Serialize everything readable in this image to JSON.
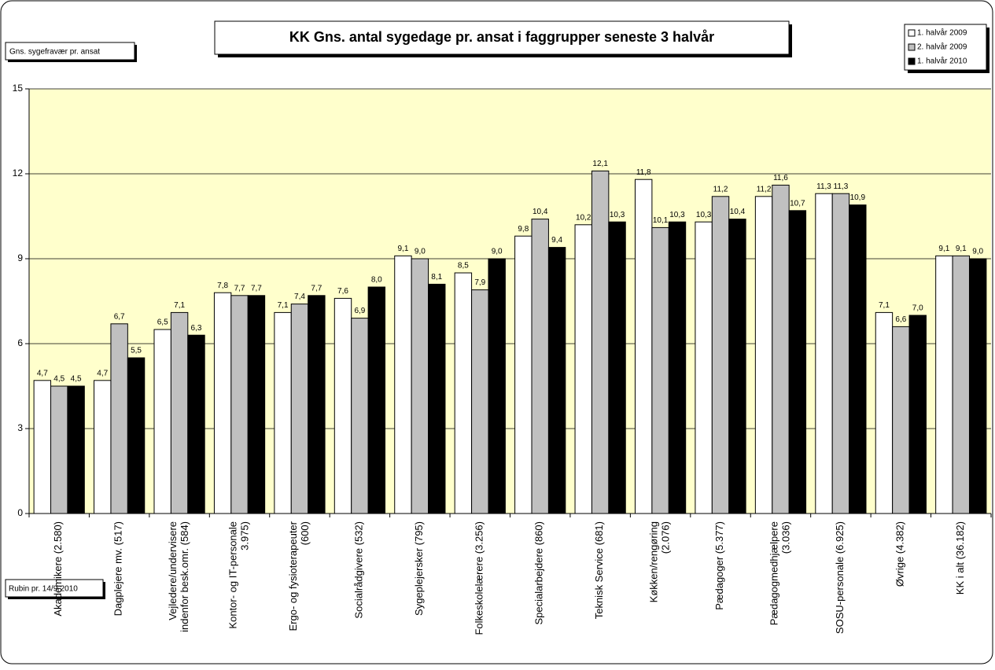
{
  "chart_data": {
    "type": "bar",
    "title": "KK Gns. antal sygedage pr. ansat i faggrupper seneste 3 halvår",
    "y_label": "Gns. sygefravær pr. ansat",
    "footnote": "Rubin pr. 14/9-2010",
    "categories": [
      "Akademikere (2.580)",
      "Dagplejere mv. (517)",
      "Vejledere/undervisere\nindenfor besk.omr. (584)",
      "Kontor- og IT-personale\n3.975)",
      "Ergo- og fysioterapeuter\n(600)",
      "Socialrådgivere (532)",
      "Sygeplejersker (795)",
      "Folkeskolelærere (3.256)",
      "Specialarbejdere (860)",
      "Teknisk Service (681)",
      "Køkken/rengøring\n(2.076)",
      "Pædagoger (5.377)",
      "Pædagogmedhjælpere\n(3.036)",
      "SOSU-personale (6.925)",
      "Øvrige (4.382)",
      "KK i alt (36.182)"
    ],
    "series": [
      {
        "name": "1. halvår 2009",
        "color": "#ffffff",
        "values": [
          4.7,
          4.7,
          6.5,
          7.8,
          7.1,
          7.6,
          9.1,
          8.5,
          9.8,
          10.2,
          11.8,
          10.3,
          11.2,
          11.3,
          7.1,
          9.1
        ],
        "value_labels": [
          "4,7",
          "4,7",
          "6,5",
          "7,8",
          "7,1",
          "7,6",
          "9,1",
          "8,5",
          "9,8",
          "10,2",
          "11,8",
          "10,3",
          "11,2",
          "11,3",
          "7,1",
          "9,1"
        ]
      },
      {
        "name": "2. halvår 2009",
        "color": "#c0c0c0",
        "values": [
          4.5,
          6.7,
          7.1,
          7.7,
          7.4,
          6.9,
          9.0,
          7.9,
          10.4,
          12.1,
          10.1,
          11.2,
          11.6,
          11.3,
          6.6,
          9.1
        ],
        "value_labels": [
          "4,5",
          "6,7",
          "7,1",
          "7,7",
          "7,4",
          "6,9",
          "9,0",
          "7,9",
          "10,4",
          "12,1",
          "10,1",
          "11,2",
          "11,6",
          "11,3",
          "6,6",
          "9,1"
        ]
      },
      {
        "name": "1. halvår 2010",
        "color": "#000000",
        "values": [
          4.5,
          5.5,
          6.3,
          7.7,
          7.7,
          8.0,
          8.1,
          9.0,
          9.4,
          10.3,
          10.3,
          10.4,
          10.7,
          10.9,
          7.0,
          9.0
        ],
        "value_labels": [
          "4,5",
          "5,5",
          "6,3",
          "7,7",
          "7,7",
          "8,0",
          "8,1",
          "9,0",
          "9,4",
          "10,3",
          "10,3",
          "10,4",
          "10,7",
          "10,9",
          "7,0",
          "9,0"
        ]
      }
    ],
    "ylim": [
      0,
      15
    ],
    "yticks": [
      0,
      3,
      6,
      9,
      12,
      15
    ],
    "grid": true,
    "plot_background": "#ffffcc",
    "legend": "top-right"
  }
}
